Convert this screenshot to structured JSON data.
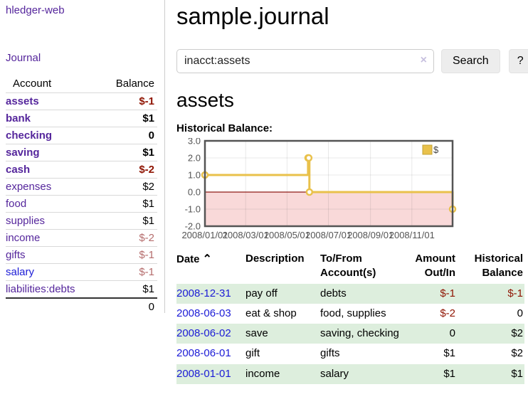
{
  "colors": {
    "purple": "#55269c",
    "blue": "#1b1bd6",
    "negative": "#8f1402",
    "negative_soft": "#b56d6d",
    "row_green": "#ddeedd",
    "series_yellow": "#e9c14b",
    "chart_border": "#545454",
    "zero_line": "#8f1a15",
    "negative_fill": "#f9d9d9"
  },
  "sidebar": {
    "app_title": "hledger-web",
    "journal_link": "Journal",
    "accounts": {
      "header_account": "Account",
      "header_balance": "Balance",
      "rows": [
        {
          "name": "assets",
          "balance": "$-1",
          "depth": 0,
          "bold": true,
          "balance_class": "neg-strong"
        },
        {
          "name": "bank",
          "balance": "$1",
          "depth": 1,
          "bold": true,
          "balance_class": ""
        },
        {
          "name": "checking",
          "balance": "0",
          "depth": 2,
          "bold": true,
          "balance_class": ""
        },
        {
          "name": "saving",
          "balance": "$1",
          "depth": 2,
          "bold": true,
          "balance_class": ""
        },
        {
          "name": "cash",
          "balance": "$-2",
          "depth": 1,
          "bold": true,
          "balance_class": "neg-strong"
        },
        {
          "name": "expenses",
          "balance": "$2",
          "depth": 0,
          "bold": false,
          "balance_class": ""
        },
        {
          "name": "food",
          "balance": "$1",
          "depth": 1,
          "bold": false,
          "balance_class": ""
        },
        {
          "name": "supplies",
          "balance": "$1",
          "depth": 1,
          "bold": false,
          "balance_class": ""
        },
        {
          "name": "income",
          "balance": "$-2",
          "depth": 0,
          "bold": false,
          "balance_class": "neg-soft"
        },
        {
          "name": "gifts",
          "balance": "$-1",
          "depth": 1,
          "bold": false,
          "balance_class": "neg-soft"
        },
        {
          "name": "salary",
          "balance": "$-1",
          "depth": 1,
          "bold": false,
          "balance_class": "neg-soft",
          "link_class": "blue"
        },
        {
          "name": "liabilities:debts",
          "balance": "$1",
          "depth": 0,
          "bold": false,
          "balance_class": ""
        }
      ],
      "total": "0"
    }
  },
  "main": {
    "title": "sample.journal",
    "search": {
      "value": "inacct:assets",
      "clear_icon": "×",
      "button_label": "Search",
      "help_label": "?"
    },
    "account_heading": "assets",
    "chart_label": "Historical Balance:"
  },
  "chart_data": {
    "type": "line",
    "title": "Historical Balance:",
    "step": true,
    "series": [
      {
        "name": "$",
        "points": [
          [
            "2008-01-01",
            1
          ],
          [
            "2008-06-01",
            2
          ],
          [
            "2008-06-02",
            2
          ],
          [
            "2008-06-03",
            0
          ],
          [
            "2008-12-31",
            -1
          ]
        ]
      }
    ],
    "ylim": [
      -2,
      3
    ],
    "yticks": [
      3.0,
      2.0,
      1.0,
      0.0,
      -1.0,
      -2.0
    ],
    "xticks": [
      "2008/01/01",
      "2008/03/01",
      "2008/05/01",
      "2008/07/01",
      "2008/09/01",
      "2008/11/01"
    ],
    "xrange": [
      "2008-01-01",
      "2008-12-31"
    ],
    "grid": true,
    "legend": {
      "label": "$",
      "position": "top-right"
    },
    "negative_region_shaded": true
  },
  "register": {
    "headers": [
      {
        "label": "Date",
        "sort_icon": "⌃",
        "align": "left"
      },
      {
        "label": "Description",
        "align": "left"
      },
      {
        "label": "To/From Account(s)",
        "align": "left"
      },
      {
        "label": "Amount Out/In",
        "align": "right"
      },
      {
        "label": "Historical Balance",
        "align": "right"
      }
    ],
    "rows": [
      {
        "date": "2008-12-31",
        "description": "pay off",
        "accounts": "debts",
        "amount": "$-1",
        "balance": "$-1",
        "amount_neg": true,
        "balance_neg": true
      },
      {
        "date": "2008-06-03",
        "description": "eat & shop",
        "accounts": "food, supplies",
        "amount": "$-2",
        "balance": "0",
        "amount_neg": true,
        "balance_neg": false
      },
      {
        "date": "2008-06-02",
        "description": "save",
        "accounts": "saving, checking",
        "amount": "0",
        "balance": "$2",
        "amount_neg": false,
        "balance_neg": false
      },
      {
        "date": "2008-06-01",
        "description": "gift",
        "accounts": "gifts",
        "amount": "$1",
        "balance": "$2",
        "amount_neg": false,
        "balance_neg": false
      },
      {
        "date": "2008-01-01",
        "description": "income",
        "accounts": "salary",
        "amount": "$1",
        "balance": "$1",
        "amount_neg": false,
        "balance_neg": false
      }
    ]
  }
}
